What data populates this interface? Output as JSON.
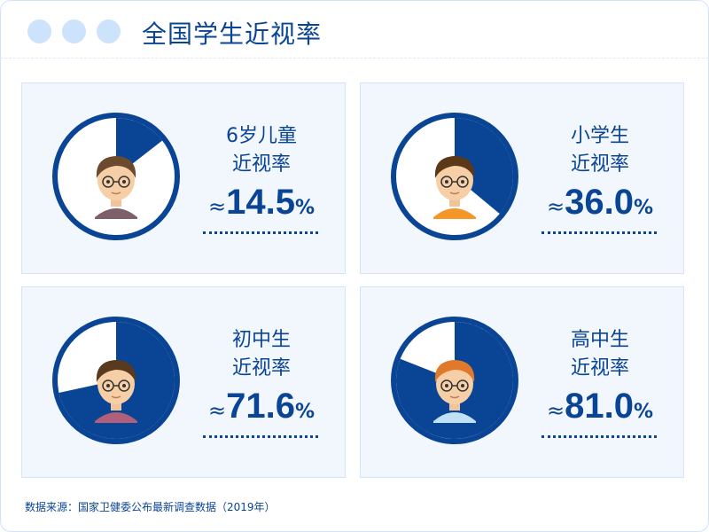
{
  "title": "全国学生近视率",
  "footer": "数据来源：国家卫健委公布最新调查数据（2019年）",
  "colors": {
    "accent": "#0a4494",
    "card_bg": "#f2f7fe",
    "dots": "#cce3fb"
  },
  "chart_data": [
    {
      "type": "pie",
      "label1": "6岁儿童",
      "label2": "近视率",
      "approx": "≈",
      "value_text": "14.5",
      "unit": "%",
      "value": 14.5,
      "avatar": "child-avatar-icon"
    },
    {
      "type": "pie",
      "label1": "小学生",
      "label2": "近视率",
      "approx": "≈",
      "value_text": "36.0",
      "unit": "%",
      "value": 36.0,
      "avatar": "primary-student-avatar-icon"
    },
    {
      "type": "pie",
      "label1": "初中生",
      "label2": "近视率",
      "approx": "≈",
      "value_text": "71.6",
      "unit": "%",
      "value": 71.6,
      "avatar": "middle-school-student-avatar-icon"
    },
    {
      "type": "pie",
      "label1": "高中生",
      "label2": "近视率",
      "approx": "≈",
      "value_text": "81.0",
      "unit": "%",
      "value": 81.0,
      "avatar": "high-school-student-avatar-icon"
    }
  ]
}
